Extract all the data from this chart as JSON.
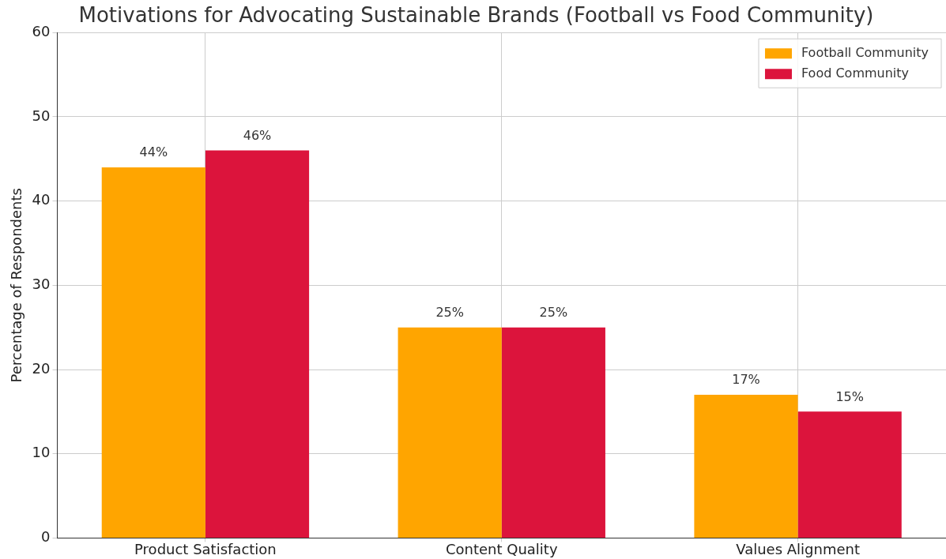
{
  "chart_data": {
    "type": "bar",
    "title": "Motivations for Advocating Sustainable Brands (Football vs Food Community)",
    "ylabel": "Percentage of Respondents",
    "categories": [
      "Product Satisfaction",
      "Content Quality",
      "Values Alignment"
    ],
    "series": [
      {
        "name": "Football Community",
        "color": "#ffa500",
        "values": [
          44,
          25,
          17
        ],
        "value_labels": [
          "44%",
          "25%",
          "17%"
        ]
      },
      {
        "name": "Food Community",
        "color": "#dc143c",
        "values": [
          46,
          25,
          15
        ],
        "value_labels": [
          "46%",
          "25%",
          "15%"
        ]
      }
    ],
    "ylim": [
      0,
      60
    ],
    "yticks": [
      0,
      10,
      20,
      30,
      40,
      50,
      60
    ],
    "grid": true,
    "legend": "top right"
  }
}
